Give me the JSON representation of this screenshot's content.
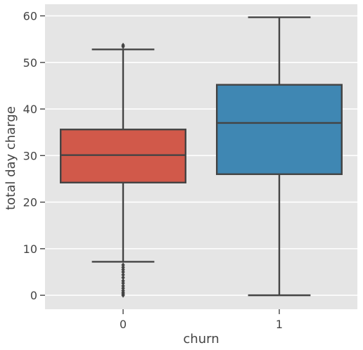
{
  "chart_data": {
    "type": "box",
    "title": "",
    "xlabel": "churn",
    "ylabel": "total day charge",
    "categories": [
      "0",
      "1"
    ],
    "ylim": [
      -3,
      62.5
    ],
    "yticks": [
      0,
      10,
      20,
      30,
      40,
      50,
      60
    ],
    "grid": true,
    "boxes": [
      {
        "category": "0",
        "color": "#d1594a",
        "whisker_low": 7.2,
        "q1": 24.2,
        "median": 30.1,
        "q3": 35.6,
        "whisker_high": 52.8,
        "outliers": [
          0.0,
          0.3,
          0.6,
          1.0,
          1.5,
          2.0,
          2.6,
          3.1,
          3.8,
          4.4,
          5.0,
          5.5,
          6.0,
          6.5,
          53.4,
          53.7
        ]
      },
      {
        "category": "1",
        "color": "#3f87b3",
        "whisker_low": 0.0,
        "q1": 26.0,
        "median": 37.0,
        "q3": 45.2,
        "whisker_high": 59.7,
        "outliers": []
      }
    ]
  },
  "colors": {
    "plot_background": "#e5e5e5",
    "grid": "#ffffff",
    "line": "#444444",
    "text": "#444444"
  }
}
